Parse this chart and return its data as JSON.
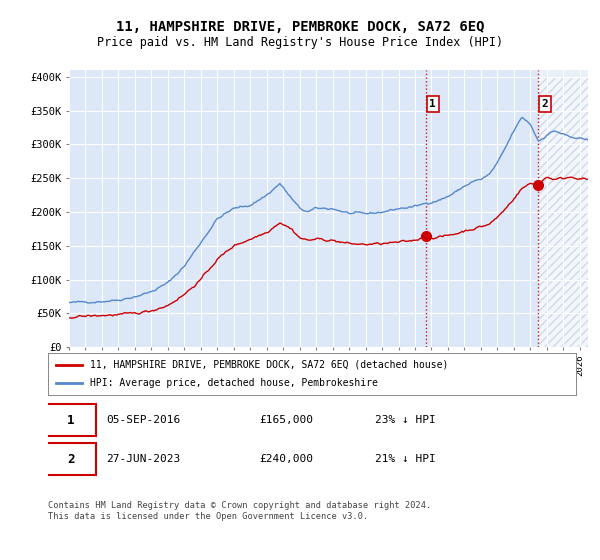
{
  "title": "11, HAMPSHIRE DRIVE, PEMBROKE DOCK, SA72 6EQ",
  "subtitle": "Price paid vs. HM Land Registry's House Price Index (HPI)",
  "legend_label_red": "11, HAMPSHIRE DRIVE, PEMBROKE DOCK, SA72 6EQ (detached house)",
  "legend_label_blue": "HPI: Average price, detached house, Pembrokeshire",
  "annotation1_label": "1",
  "annotation1_date": "05-SEP-2016",
  "annotation1_price": "£165,000",
  "annotation1_hpi": "23% ↓ HPI",
  "annotation2_label": "2",
  "annotation2_date": "27-JUN-2023",
  "annotation2_price": "£240,000",
  "annotation2_hpi": "21% ↓ HPI",
  "footer": "Contains HM Land Registry data © Crown copyright and database right 2024.\nThis data is licensed under the Open Government Licence v3.0.",
  "red_color": "#cc0000",
  "blue_color": "#5588cc",
  "vline_color": "#cc0000",
  "hatch_color": "#c8d8f0",
  "plot_bg": "#dce8f8",
  "ylim": [
    0,
    400000
  ],
  "yticks": [
    0,
    50000,
    100000,
    150000,
    200000,
    250000,
    300000,
    350000,
    400000
  ],
  "yticklabels": [
    "£0",
    "£50K",
    "£100K",
    "£150K",
    "£200K",
    "£250K",
    "£300K",
    "£350K",
    "£400K"
  ],
  "xmin": 1995,
  "xmax": 2026.5,
  "sale1_year": 2016.68,
  "sale2_year": 2023.49,
  "sale1_price": 165000,
  "sale2_price": 240000
}
